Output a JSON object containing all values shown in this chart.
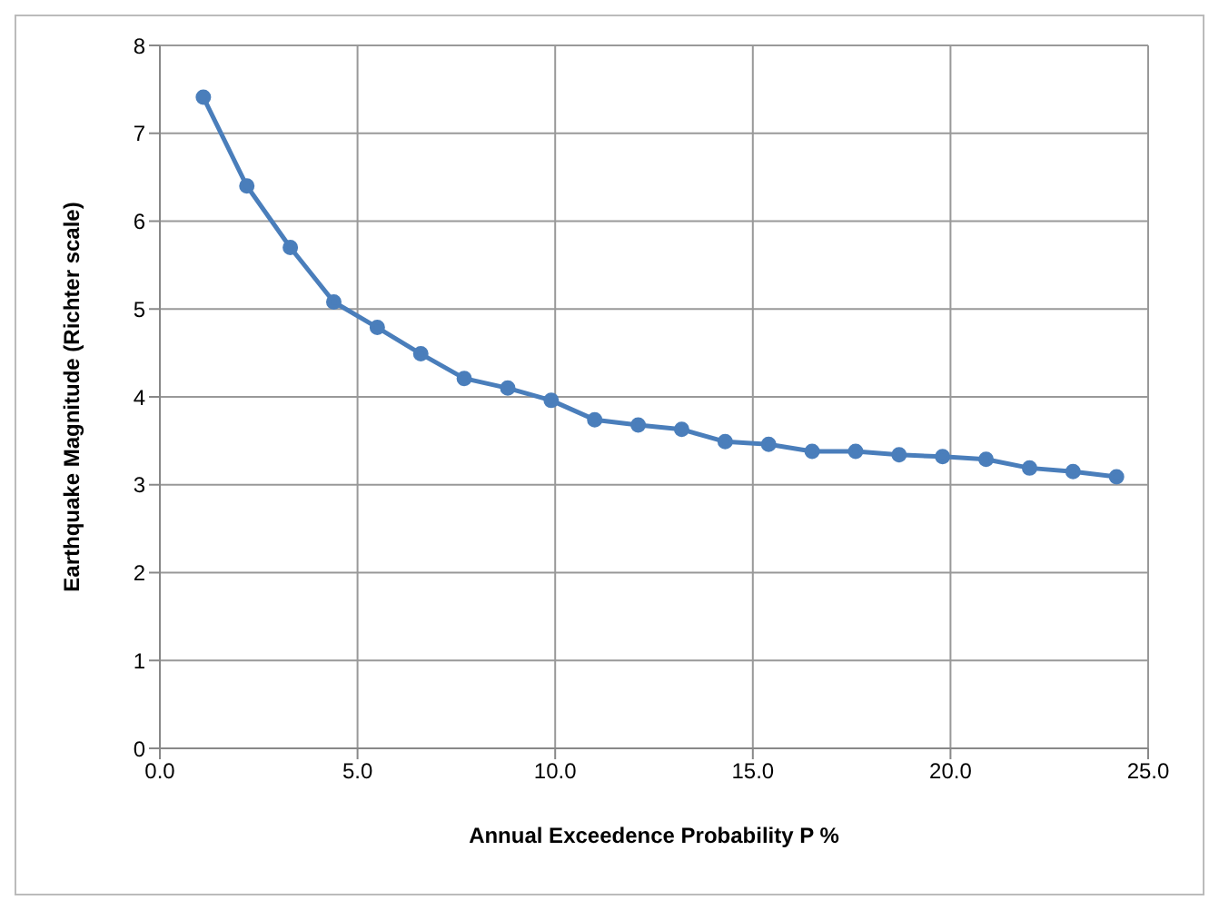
{
  "chart_data": {
    "type": "line",
    "xlabel": "Annual Exceedence Probability P %",
    "ylabel": "Earthquake Magnitude  (Richter scale)",
    "x": [
      1.1,
      2.2,
      3.3,
      4.4,
      5.5,
      6.6,
      7.7,
      8.8,
      9.9,
      11.0,
      12.1,
      13.2,
      14.3,
      15.4,
      16.5,
      17.6,
      18.7,
      19.8,
      20.9,
      22.0,
      23.1,
      24.2
    ],
    "series": [
      {
        "color": "#4a7ebb",
        "values": [
          7.41,
          6.4,
          5.7,
          5.08,
          4.79,
          4.49,
          4.21,
          4.1,
          3.96,
          3.74,
          3.68,
          3.63,
          3.49,
          3.46,
          3.38,
          3.38,
          3.34,
          3.32,
          3.29,
          3.19,
          3.15,
          3.09
        ]
      }
    ],
    "xlim": [
      0,
      25
    ],
    "xticks": [
      {
        "value": 0,
        "label": "0.0"
      },
      {
        "value": 5,
        "label": "5.0"
      },
      {
        "value": 10,
        "label": "10.0"
      },
      {
        "value": 15,
        "label": "15.0"
      },
      {
        "value": 20,
        "label": "20.0"
      },
      {
        "value": 25,
        "label": "25.0"
      }
    ],
    "ylim": [
      0,
      8
    ],
    "yticks": [
      0,
      1,
      2,
      3,
      4,
      5,
      6,
      7,
      8
    ],
    "grid": true,
    "legend": false,
    "marker": "circle",
    "line_style": "solid"
  }
}
